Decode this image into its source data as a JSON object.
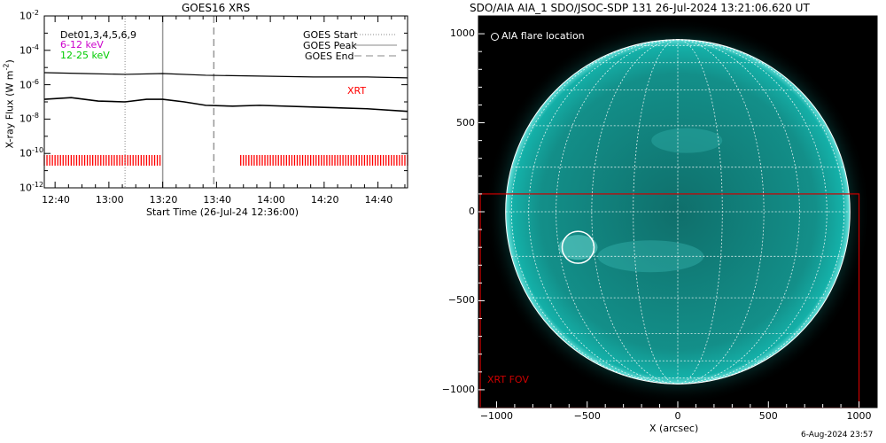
{
  "chart_data": [
    {
      "type": "line",
      "title": "GOES16 XRS",
      "xlabel": "Start Time (26-Jul-24 12:36:00)",
      "ylabel_text": "X-ray Flux (W m",
      "ylabel_sup": "-2",
      "ylabel_close": ")",
      "xlim_minutes_after_start": [
        0,
        135
      ],
      "ylim_log10": [
        -12,
        -2
      ],
      "ylog": true,
      "x_ticks": [
        {
          "label": "12:40",
          "minutes": 4
        },
        {
          "label": "13:00",
          "minutes": 24
        },
        {
          "label": "13:20",
          "minutes": 44
        },
        {
          "label": "13:40",
          "minutes": 64
        },
        {
          "label": "14:00",
          "minutes": 84
        },
        {
          "label": "14:20",
          "minutes": 104
        },
        {
          "label": "14:40",
          "minutes": 124
        }
      ],
      "y_ticks": [
        {
          "mantissa": "10",
          "exp": "-2",
          "log10": -2
        },
        {
          "mantissa": "10",
          "exp": "-4",
          "log10": -4
        },
        {
          "mantissa": "10",
          "exp": "-6",
          "log10": -6
        },
        {
          "mantissa": "10",
          "exp": "-8",
          "log10": -8
        },
        {
          "mantissa": "10",
          "exp": "-10",
          "log10": -10
        },
        {
          "mantissa": "10",
          "exp": "-12",
          "log10": -12
        }
      ],
      "detector_text": "Det01,3,4,5,6,9",
      "energy_labels": [
        {
          "text": "6-12 keV",
          "color": "#cc00cc"
        },
        {
          "text": "12-25 keV",
          "color": "#00cc00"
        }
      ],
      "legend": [
        {
          "label": "GOES Start",
          "style": "dotted"
        },
        {
          "label": "GOES Peak",
          "style": "solid"
        },
        {
          "label": "GOES End",
          "style": "dashed"
        }
      ],
      "legend_position": "top-right",
      "xrt_label": "XRT",
      "xrt_color": "#ff0000",
      "event_lines_minutes": {
        "start": 30,
        "peak": 44,
        "end": 63
      },
      "series": [
        {
          "id": "long",
          "color": "#000000",
          "x_minutes": [
            0,
            15,
            30,
            44,
            60,
            80,
            100,
            120,
            135
          ],
          "log10_flux": [
            -5.3,
            -5.35,
            -5.4,
            -5.35,
            -5.45,
            -5.5,
            -5.55,
            -5.55,
            -5.6
          ]
        },
        {
          "id": "short",
          "color": "#000000",
          "x_minutes": [
            0,
            10,
            20,
            30,
            38,
            44,
            52,
            60,
            70,
            80,
            100,
            120,
            135
          ],
          "log10_flux": [
            -6.85,
            -6.75,
            -6.95,
            -7.0,
            -6.85,
            -6.85,
            -7.0,
            -7.2,
            -7.25,
            -7.2,
            -7.3,
            -7.4,
            -7.55
          ]
        }
      ],
      "xrt_observations": {
        "log10_flux": -10.4,
        "intervals_minutes": [
          [
            0,
            43
          ],
          [
            73,
            135
          ]
        ],
        "cadence_minutes": 1
      }
    },
    {
      "type": "scatter",
      "title": "SDO/AIA AIA_1 SDO/JSOC-SDP 131 26-Jul-2024 13:21:06.620 UT",
      "xlabel": "X (arcsec)",
      "xlim": [
        -1100,
        1100
      ],
      "ylim": [
        -1100,
        1100
      ],
      "x_ticks": [
        -1000,
        -500,
        0,
        500,
        1000
      ],
      "y_ticks": [
        1000,
        500,
        0,
        -500,
        -1000
      ],
      "legend_text": "AIA flare location",
      "legend_position": "top-left",
      "solar_radius_arcsec": 950,
      "grid_spacing_deg": 15,
      "flare_location_arcsec": {
        "x": -550,
        "y": -200
      },
      "xrt_fov": {
        "label": "XRT FOV",
        "x": [
          -1090,
          1000
        ],
        "y": [
          -1100,
          100
        ],
        "color": "#cc0000"
      },
      "disk_color": "#14b0a8",
      "background_color": "#000000"
    }
  ],
  "footer_date": "6-Aug-2024 23:57"
}
